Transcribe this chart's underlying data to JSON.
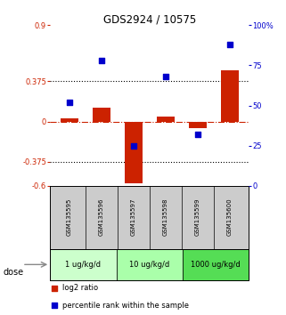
{
  "title": "GDS2924 / 10575",
  "samples": [
    "GSM135595",
    "GSM135596",
    "GSM135597",
    "GSM135598",
    "GSM135599",
    "GSM135600"
  ],
  "log2_ratios": [
    0.03,
    0.13,
    -0.58,
    0.05,
    -0.06,
    0.48
  ],
  "percentile_ranks": [
    52,
    78,
    25,
    68,
    32,
    88
  ],
  "ylim_left": [
    -0.6,
    0.9
  ],
  "ylim_right": [
    0,
    100
  ],
  "yticks_left": [
    -0.6,
    -0.375,
    0,
    0.375,
    0.9
  ],
  "yticks_right": [
    0,
    25,
    50,
    75,
    100
  ],
  "ytick_labels_left": [
    "-0.6",
    "-0.375",
    "0",
    "0.375",
    "0.9"
  ],
  "ytick_labels_right": [
    "0",
    "25",
    "50",
    "75",
    "100%"
  ],
  "hlines": [
    0.375,
    -0.375
  ],
  "bar_color": "#cc2200",
  "dot_color": "#0000cc",
  "bar_width": 0.55,
  "dot_size": 25,
  "dose_groups": [
    {
      "label": "1 ug/kg/d",
      "color": "#ccffcc"
    },
    {
      "label": "10 ug/kg/d",
      "color": "#aaffaa"
    },
    {
      "label": "1000 ug/kg/d",
      "color": "#55dd55"
    }
  ],
  "dose_label": "dose",
  "legend_bar_label": "log2 ratio",
  "legend_dot_label": "percentile rank within the sample",
  "background_color": "#ffffff",
  "sample_box_color": "#cccccc",
  "dashed_line_color": "#cc2200",
  "dotted_line_color": "#000000"
}
